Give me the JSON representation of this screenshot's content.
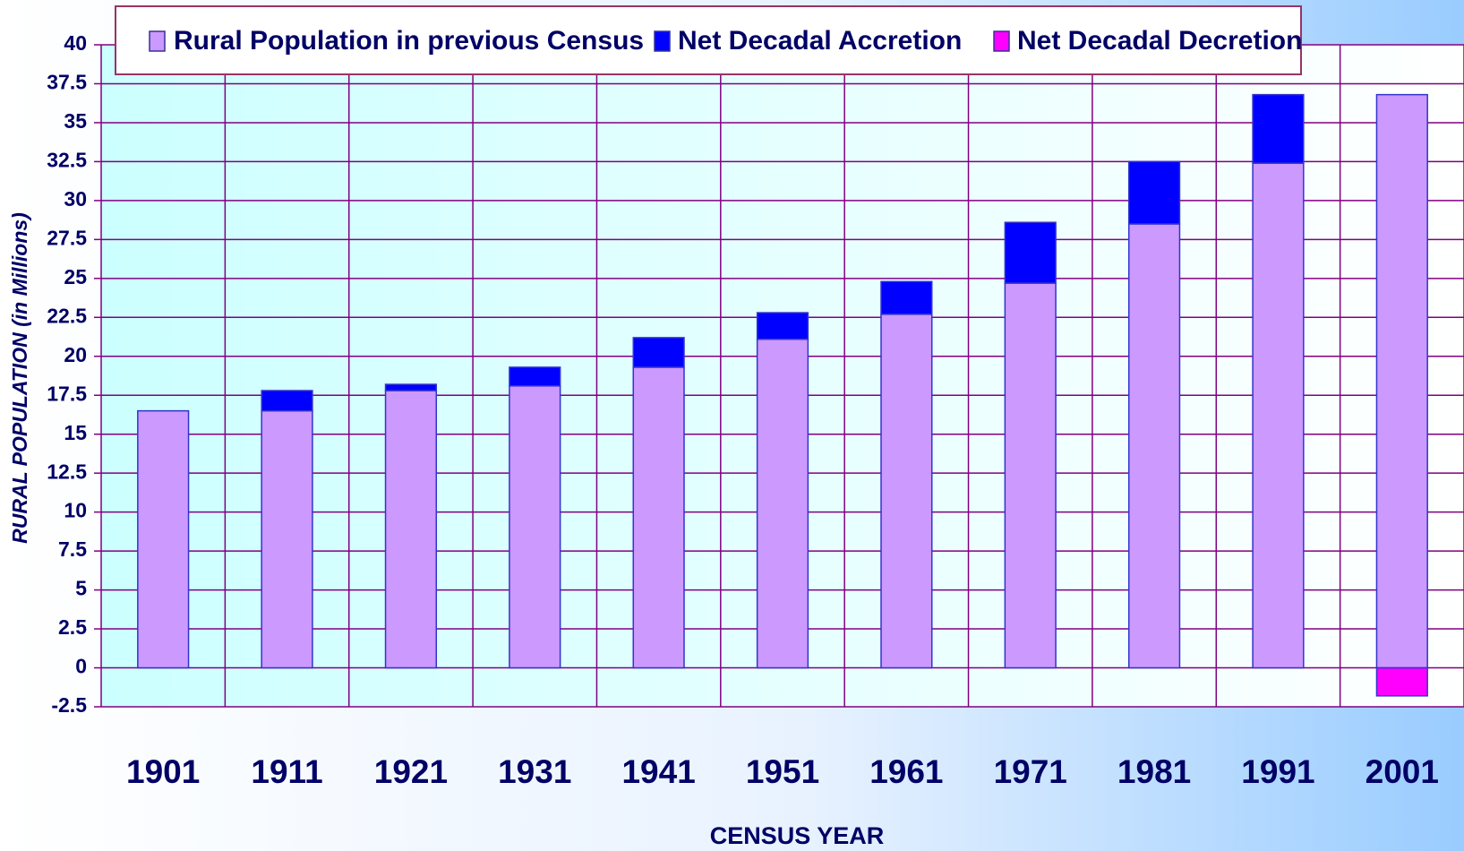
{
  "chart_data": {
    "type": "stacked_bar",
    "x_label": "CENSUS YEAR",
    "y_label": "RURAL POPULATION (in Millions)",
    "categories": [
      "1901",
      "1911",
      "1921",
      "1931",
      "1941",
      "1951",
      "1961",
      "1971",
      "1981",
      "1991",
      "2001"
    ],
    "series": [
      {
        "name": "Rural Population in previous Census",
        "color": "#cc99ff",
        "values": [
          16.5,
          16.5,
          17.8,
          18.1,
          19.3,
          21.1,
          22.7,
          24.7,
          28.5,
          32.4,
          36.8
        ]
      },
      {
        "name": "Net Decadal Accretion",
        "color": "#0000ff",
        "values": [
          0,
          1.3,
          0.4,
          1.2,
          1.9,
          1.7,
          2.1,
          3.9,
          4.0,
          4.4,
          null
        ]
      },
      {
        "name": "Net Decadal Decretion",
        "color": "#ff00ff",
        "values": [
          null,
          null,
          null,
          null,
          null,
          null,
          null,
          null,
          null,
          null,
          -1.8
        ]
      }
    ],
    "ylim": [
      -2.5,
      40
    ],
    "yticks": [
      -2.5,
      0,
      2.5,
      5,
      7.5,
      10,
      12.5,
      15,
      17.5,
      20,
      22.5,
      25,
      27.5,
      30,
      32.5,
      35,
      37.5,
      40
    ],
    "grid": true,
    "legend": "top"
  }
}
